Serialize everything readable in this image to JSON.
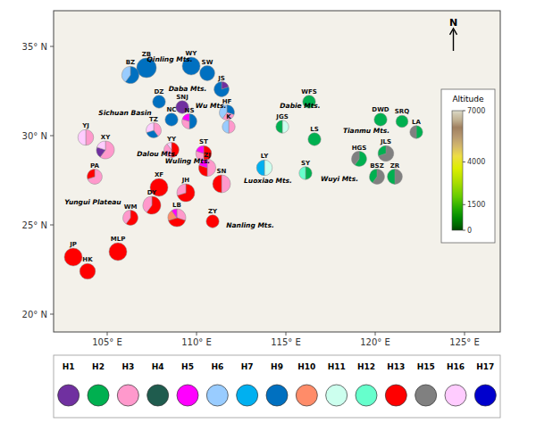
{
  "chart_data": {
    "type": "map",
    "xlim": [
      102,
      127
    ],
    "ylim": [
      19,
      37
    ],
    "xticks": [
      {
        "value": 105,
        "label": "105° E"
      },
      {
        "value": 110,
        "label": "110° E"
      },
      {
        "value": 115,
        "label": "115° E"
      },
      {
        "value": 120,
        "label": "120° E"
      },
      {
        "value": 125,
        "label": "125° E"
      }
    ],
    "yticks": [
      {
        "value": 20,
        "label": "20° N"
      },
      {
        "value": 25,
        "label": "25° N"
      },
      {
        "value": 30,
        "label": "30° N"
      },
      {
        "value": 35,
        "label": "35° N"
      }
    ],
    "legend": "bottom",
    "series": [
      {
        "name": "H1",
        "color": "#7030A0"
      },
      {
        "name": "H2",
        "color": "#00B050"
      },
      {
        "name": "H3",
        "color": "#FF99CC"
      },
      {
        "name": "H4",
        "color": "#1F5C4E"
      },
      {
        "name": "H5",
        "color": "#FF00FF"
      },
      {
        "name": "H6",
        "color": "#99CCFF"
      },
      {
        "name": "H7",
        "color": "#00B0F0"
      },
      {
        "name": "H9",
        "color": "#0070C0"
      },
      {
        "name": "H10",
        "color": "#FF8C69"
      },
      {
        "name": "H11",
        "color": "#CCFFEE"
      },
      {
        "name": "H12",
        "color": "#66FFCC"
      },
      {
        "name": "H13",
        "color": "#FF0000"
      },
      {
        "name": "H15",
        "color": "#808080"
      },
      {
        "name": "H16",
        "color": "#FFCCFF"
      },
      {
        "name": "H17",
        "color": "#0000CD"
      }
    ],
    "annotations": [
      {
        "text": "Qinling Mts.",
        "x": 108.5,
        "y": 34.3
      },
      {
        "text": "Daba Mts.",
        "x": 109.5,
        "y": 32.65
      },
      {
        "text": "Wu Mts.",
        "x": 110.8,
        "y": 31.7
      },
      {
        "text": "Sichuan Basin",
        "x": 106.0,
        "y": 31.3
      },
      {
        "text": "Dalou Mts.",
        "x": 107.8,
        "y": 29.0
      },
      {
        "text": "Wuling Mts.",
        "x": 109.5,
        "y": 28.6
      },
      {
        "text": "Yungui Plateau",
        "x": 104.2,
        "y": 26.3
      },
      {
        "text": "Nanling Mts.",
        "x": 113.0,
        "y": 25.0
      },
      {
        "text": "Dabie Mts.",
        "x": 115.8,
        "y": 31.7
      },
      {
        "text": "Tianmu Mts.",
        "x": 119.5,
        "y": 30.3
      },
      {
        "text": "Luoxiao Mts.",
        "x": 114.0,
        "y": 27.5
      },
      {
        "text": "Wuyi Mts.",
        "x": 118.0,
        "y": 27.6
      }
    ],
    "north_arrow": {
      "text": "N"
    },
    "colorbar": {
      "label": "Altitude",
      "range": [
        0,
        7000
      ],
      "ticks": [
        0,
        1500,
        4000,
        7000
      ]
    },
    "sites": [
      {
        "name": "ZB",
        "x": 107.2,
        "y": 33.8,
        "size": 0.55,
        "haplotypes": [
          "H9"
        ],
        "values": [
          1.0
        ]
      },
      {
        "name": "WY",
        "x": 109.7,
        "y": 33.9,
        "size": 0.5,
        "haplotypes": [
          "H9"
        ],
        "values": [
          1.0
        ]
      },
      {
        "name": "BZ",
        "x": 106.3,
        "y": 33.4,
        "size": 0.48,
        "haplotypes": [
          "H9",
          "H6"
        ],
        "values": [
          0.6,
          0.4
        ]
      },
      {
        "name": "SW",
        "x": 110.6,
        "y": 33.5,
        "size": 0.42,
        "haplotypes": [
          "H9"
        ],
        "values": [
          1.0
        ]
      },
      {
        "name": "JS",
        "x": 111.4,
        "y": 32.6,
        "size": 0.42,
        "haplotypes": [
          "H1",
          "H9"
        ],
        "values": [
          0.2,
          0.8
        ]
      },
      {
        "name": "DZ",
        "x": 107.9,
        "y": 31.9,
        "size": 0.36,
        "haplotypes": [
          "H9"
        ],
        "values": [
          1.0
        ]
      },
      {
        "name": "SNJ",
        "x": 109.2,
        "y": 31.6,
        "size": 0.36,
        "haplotypes": [
          "H1"
        ],
        "values": [
          1.0
        ]
      },
      {
        "name": "HF",
        "x": 111.7,
        "y": 31.3,
        "size": 0.42,
        "haplotypes": [
          "H9",
          "H3",
          "H6"
        ],
        "values": [
          0.3,
          0.3,
          0.4
        ]
      },
      {
        "name": "NC",
        "x": 108.6,
        "y": 30.9,
        "size": 0.36,
        "haplotypes": [
          "H9"
        ],
        "values": [
          1.0
        ]
      },
      {
        "name": "NS",
        "x": 109.6,
        "y": 30.8,
        "size": 0.42,
        "haplotypes": [
          "H9",
          "H3",
          "H5"
        ],
        "values": [
          0.5,
          0.3,
          0.2
        ]
      },
      {
        "name": "TZ",
        "x": 107.6,
        "y": 30.3,
        "size": 0.42,
        "haplotypes": [
          "H3",
          "H9",
          "H16"
        ],
        "values": [
          0.4,
          0.3,
          0.3
        ]
      },
      {
        "name": "K",
        "x": 111.8,
        "y": 30.5,
        "size": 0.36,
        "haplotypes": [
          "H3",
          "H6"
        ],
        "values": [
          0.5,
          0.5
        ]
      },
      {
        "name": "YY",
        "x": 108.6,
        "y": 29.2,
        "size": 0.42,
        "haplotypes": [
          "H13",
          "H3",
          "H16"
        ],
        "values": [
          0.5,
          0.4,
          0.1
        ]
      },
      {
        "name": "ST",
        "x": 110.4,
        "y": 29.0,
        "size": 0.44,
        "haplotypes": [
          "H13",
          "H3",
          "H5"
        ],
        "values": [
          0.5,
          0.3,
          0.2
        ]
      },
      {
        "name": "ZJ",
        "x": 110.6,
        "y": 28.2,
        "size": 0.48,
        "haplotypes": [
          "H3",
          "H13",
          "H5"
        ],
        "values": [
          0.5,
          0.3,
          0.2
        ]
      },
      {
        "name": "SN",
        "x": 111.4,
        "y": 27.3,
        "size": 0.5,
        "haplotypes": [
          "H3",
          "H13"
        ],
        "values": [
          0.5,
          0.5
        ]
      },
      {
        "name": "XF",
        "x": 107.9,
        "y": 27.1,
        "size": 0.5,
        "haplotypes": [
          "H13"
        ],
        "values": [
          1.0
        ]
      },
      {
        "name": "JH",
        "x": 109.4,
        "y": 26.8,
        "size": 0.5,
        "haplotypes": [
          "H13",
          "H3"
        ],
        "values": [
          0.7,
          0.3
        ]
      },
      {
        "name": "YJ",
        "x": 103.8,
        "y": 29.9,
        "size": 0.44,
        "haplotypes": [
          "H3",
          "H16"
        ],
        "values": [
          0.5,
          0.5
        ]
      },
      {
        "name": "XY",
        "x": 104.9,
        "y": 29.2,
        "size": 0.5,
        "haplotypes": [
          "H3",
          "H1",
          "H16"
        ],
        "values": [
          0.6,
          0.2,
          0.2
        ]
      },
      {
        "name": "PA",
        "x": 104.3,
        "y": 27.7,
        "size": 0.42,
        "haplotypes": [
          "H3",
          "H13"
        ],
        "values": [
          0.7,
          0.3
        ]
      },
      {
        "name": "DY",
        "x": 107.5,
        "y": 26.1,
        "size": 0.5,
        "haplotypes": [
          "H13",
          "H3"
        ],
        "values": [
          0.6,
          0.4
        ]
      },
      {
        "name": "WM",
        "x": 106.3,
        "y": 25.4,
        "size": 0.42,
        "haplotypes": [
          "H13",
          "H3"
        ],
        "values": [
          0.6,
          0.4
        ]
      },
      {
        "name": "LB",
        "x": 108.9,
        "y": 25.4,
        "size": 0.5,
        "haplotypes": [
          "H3",
          "H13",
          "H10",
          "H5"
        ],
        "values": [
          0.3,
          0.4,
          0.2,
          0.1
        ]
      },
      {
        "name": "ZY",
        "x": 110.9,
        "y": 25.2,
        "size": 0.36,
        "haplotypes": [
          "H13"
        ],
        "values": [
          1.0
        ]
      },
      {
        "name": "JP",
        "x": 103.1,
        "y": 23.2,
        "size": 0.5,
        "haplotypes": [
          "H13"
        ],
        "values": [
          1.0
        ]
      },
      {
        "name": "HK",
        "x": 103.9,
        "y": 22.4,
        "size": 0.44,
        "haplotypes": [
          "H13"
        ],
        "values": [
          1.0
        ]
      },
      {
        "name": "MLP",
        "x": 105.6,
        "y": 23.5,
        "size": 0.5,
        "haplotypes": [
          "H13"
        ],
        "values": [
          1.0
        ]
      },
      {
        "name": "WFS",
        "x": 116.3,
        "y": 31.9,
        "size": 0.36,
        "haplotypes": [
          "H2"
        ],
        "values": [
          1.0
        ]
      },
      {
        "name": "DWD",
        "x": 120.3,
        "y": 30.9,
        "size": 0.36,
        "haplotypes": [
          "H2"
        ],
        "values": [
          1.0
        ]
      },
      {
        "name": "SRQ",
        "x": 121.5,
        "y": 30.8,
        "size": 0.34,
        "haplotypes": [
          "H2"
        ],
        "values": [
          1.0
        ]
      },
      {
        "name": "JGS",
        "x": 114.8,
        "y": 30.5,
        "size": 0.36,
        "haplotypes": [
          "H11",
          "H2"
        ],
        "values": [
          0.5,
          0.5
        ]
      },
      {
        "name": "LS",
        "x": 116.6,
        "y": 29.8,
        "size": 0.36,
        "haplotypes": [
          "H2"
        ],
        "values": [
          1.0
        ]
      },
      {
        "name": "LA",
        "x": 122.3,
        "y": 30.2,
        "size": 0.36,
        "haplotypes": [
          "H2",
          "H15"
        ],
        "values": [
          0.5,
          0.5
        ]
      },
      {
        "name": "HGS",
        "x": 119.1,
        "y": 28.7,
        "size": 0.42,
        "haplotypes": [
          "H2",
          "H15"
        ],
        "values": [
          0.6,
          0.4
        ]
      },
      {
        "name": "JLS",
        "x": 120.6,
        "y": 29.0,
        "size": 0.44,
        "haplotypes": [
          "H15",
          "H2"
        ],
        "values": [
          0.7,
          0.3
        ]
      },
      {
        "name": "LY",
        "x": 113.8,
        "y": 28.2,
        "size": 0.44,
        "haplotypes": [
          "H11",
          "H7"
        ],
        "values": [
          0.5,
          0.5
        ]
      },
      {
        "name": "SY",
        "x": 116.1,
        "y": 27.9,
        "size": 0.36,
        "haplotypes": [
          "H2",
          "H12"
        ],
        "values": [
          0.5,
          0.5
        ]
      },
      {
        "name": "BSZ",
        "x": 120.1,
        "y": 27.7,
        "size": 0.42,
        "haplotypes": [
          "H15",
          "H2"
        ],
        "values": [
          0.6,
          0.4
        ]
      },
      {
        "name": "ZR",
        "x": 121.1,
        "y": 27.7,
        "size": 0.42,
        "haplotypes": [
          "H15",
          "H2"
        ],
        "values": [
          0.5,
          0.5
        ]
      }
    ]
  }
}
